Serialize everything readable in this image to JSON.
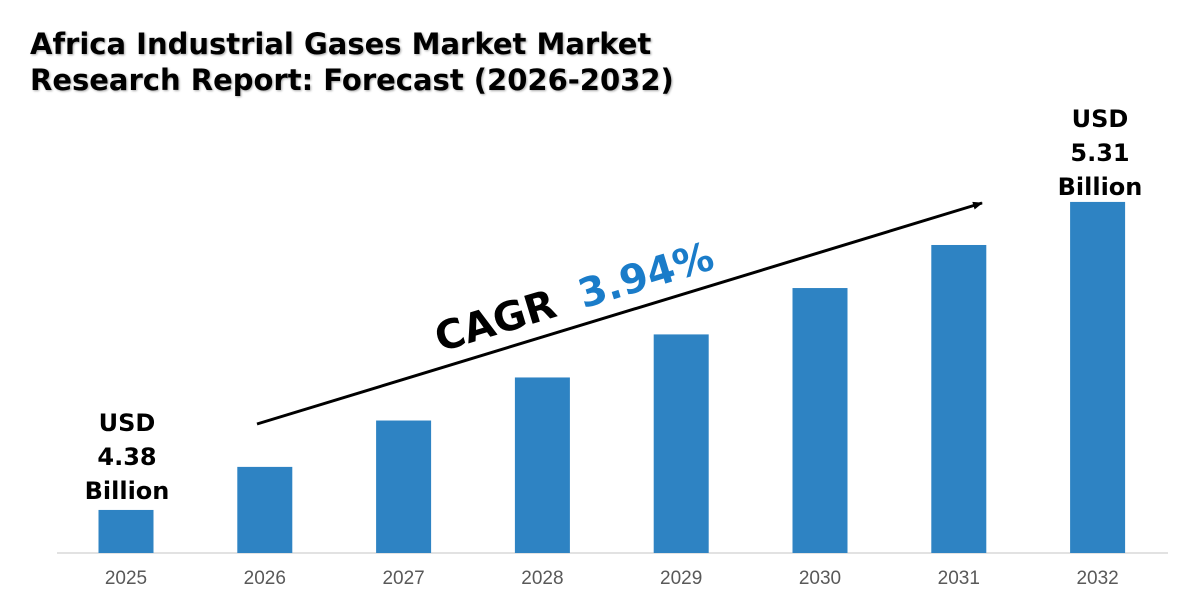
{
  "chart_data": {
    "type": "bar",
    "title_lines": [
      "Africa Industrial Gases Market Market",
      "Research Report: Forecast (2026-2032)"
    ],
    "categories": [
      "2025",
      "2026",
      "2027",
      "2028",
      "2029",
      "2030",
      "2031",
      "2032"
    ],
    "values": [
      4.38,
      4.51,
      4.65,
      4.78,
      4.91,
      5.05,
      5.18,
      5.31
    ],
    "unit": "USD Billion",
    "ylim": [
      4.25,
      5.5
    ],
    "grid": false,
    "xlabel": "",
    "ylabel": "",
    "bar_color": "#2e83c3",
    "annotations": {
      "start": [
        "USD",
        "4.38",
        "Billion"
      ],
      "end": [
        "USD",
        "5.31",
        "Billion"
      ],
      "cagr_label": "CAGR",
      "cagr_value": "3.94%",
      "cagr_color": "#1a7cc9"
    }
  }
}
